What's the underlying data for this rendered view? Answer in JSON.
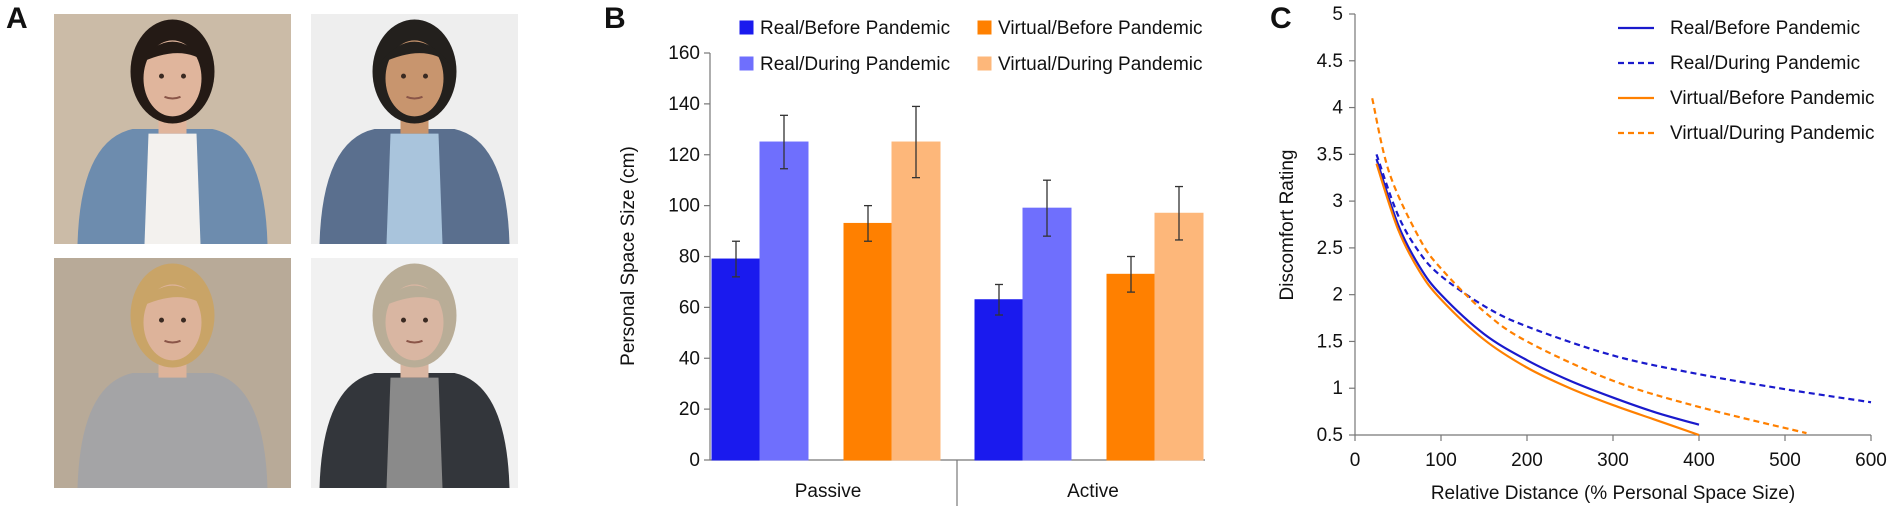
{
  "panels": {
    "a": "A",
    "b": "B",
    "c": "C"
  },
  "photos": [
    {
      "name": "real-woman-photo",
      "bg": "#cbbba7",
      "skin": "#e0b59c",
      "hair": "#241a15",
      "top": "#6d8cae",
      "inner": "#f3f1ee"
    },
    {
      "name": "virtual-woman-avatar",
      "bg": "#eeeeee",
      "skin": "#c8956e",
      "hair": "#23201d",
      "top": "#5a6f8e",
      "inner": "#a9c4dc"
    },
    {
      "name": "real-man-photo",
      "bg": "#b8aa98",
      "skin": "#ddb39a",
      "hair": "#c9a467",
      "top": "#a4a4a6",
      "inner": "#a4a4a6"
    },
    {
      "name": "virtual-man-avatar",
      "bg": "#f1f1f1",
      "skin": "#d9b6a2",
      "hair": "#b9ad97",
      "top": "#33363b",
      "inner": "#8a8a8a"
    }
  ],
  "chart_b": {
    "type": "bar",
    "ylabel": "Personal Space Size (cm)",
    "ylim": [
      0,
      160
    ],
    "yticks": [
      "0",
      "20",
      "40",
      "60",
      "80",
      "100",
      "120",
      "140",
      "160"
    ],
    "categories": [
      "Passive",
      "Active"
    ],
    "series": [
      {
        "name": "Real/Before Pandemic",
        "color": "#1a1aee",
        "values": [
          79,
          63
        ],
        "errors": [
          7,
          6
        ]
      },
      {
        "name": "Real/During Pandemic",
        "color": "#6f6ffd",
        "values": [
          125,
          99
        ],
        "errors": [
          10.5,
          11
        ]
      },
      {
        "name": "Virtual/Before Pandemic",
        "color": "#ff8000",
        "values": [
          93,
          73
        ],
        "errors": [
          7,
          7
        ]
      },
      {
        "name": "Virtual/During Pandemic",
        "color": "#fdb77a",
        "values": [
          125,
          97
        ],
        "errors": [
          14,
          10.5
        ]
      }
    ]
  },
  "chart_c": {
    "type": "line",
    "xlabel": "Relative Distance (% Personal Space Size)",
    "ylabel": "Discomfort Rating",
    "xlim": [
      0,
      600
    ],
    "ylim": [
      0.5,
      5
    ],
    "xticks": [
      "0",
      "100",
      "200",
      "300",
      "400",
      "500",
      "600"
    ],
    "yticks": [
      "0.5",
      "1",
      "1.5",
      "2",
      "2.5",
      "3",
      "3.5",
      "4",
      "4.5",
      "5"
    ],
    "series": [
      {
        "name": "Real/Before Pandemic",
        "color": "#1a1acc",
        "dash": false,
        "x": [
          25,
          50,
          75,
          100,
          150,
          200,
          250,
          300,
          350,
          400
        ],
        "y": [
          3.45,
          2.75,
          2.3,
          2.0,
          1.58,
          1.3,
          1.08,
          0.9,
          0.74,
          0.61
        ]
      },
      {
        "name": "Real/During Pandemic",
        "color": "#1a1acc",
        "dash": true,
        "x": [
          25,
          50,
          75,
          100,
          150,
          200,
          300,
          400,
          500,
          600
        ],
        "y": [
          3.5,
          2.85,
          2.45,
          2.2,
          1.88,
          1.66,
          1.35,
          1.15,
          0.99,
          0.85
        ]
      },
      {
        "name": "Virtual/Before Pandemic",
        "color": "#ff8000",
        "dash": false,
        "x": [
          25,
          50,
          75,
          100,
          150,
          200,
          250,
          300,
          350,
          400
        ],
        "y": [
          3.4,
          2.7,
          2.25,
          1.95,
          1.52,
          1.22,
          1.0,
          0.82,
          0.66,
          0.5
        ]
      },
      {
        "name": "Virtual/During Pandemic",
        "color": "#ff8000",
        "dash": true,
        "x": [
          20,
          40,
          75,
          100,
          150,
          200,
          300,
          400,
          525
        ],
        "y": [
          4.1,
          3.3,
          2.6,
          2.28,
          1.82,
          1.5,
          1.08,
          0.8,
          0.52
        ]
      }
    ]
  }
}
